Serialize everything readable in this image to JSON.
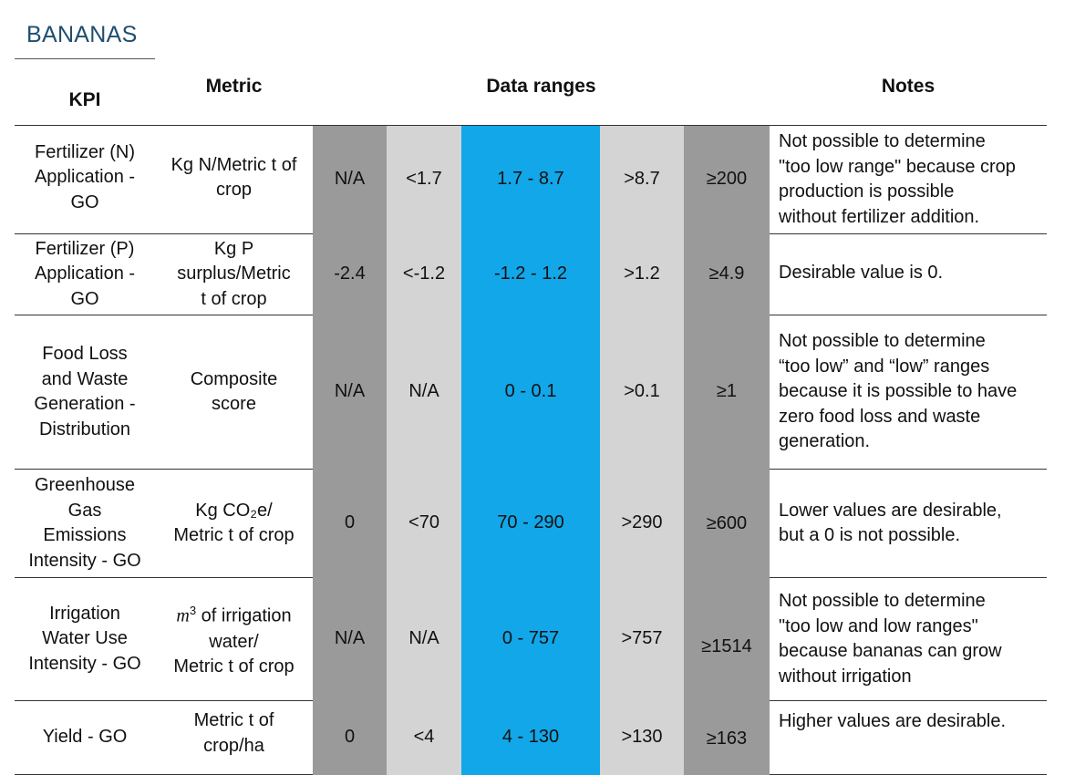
{
  "title": "BANANAS",
  "headers": {
    "kpi": "KPI",
    "metric": "Metric",
    "data_ranges": "Data ranges",
    "notes": "Notes"
  },
  "rows": [
    {
      "kpi": "Fertilizer (N)\nApplication -\nGO",
      "metric": "Kg N/Metric t of\ncrop",
      "ranges": [
        "N/A",
        "<1.7",
        "1.7 - 8.7",
        ">8.7",
        "≥200"
      ],
      "notes": "Not possible to determine\n\"too low range\" because crop\nproduction is possible\nwithout fertilizer addition."
    },
    {
      "kpi": "Fertilizer (P)\nApplication -\nGO",
      "metric": "Kg P\nsurplus/Metric\nt of crop",
      "ranges": [
        "-2.4",
        "<-1.2",
        "-1.2 - 1.2",
        ">1.2",
        "≥4.9"
      ],
      "notes": "Desirable value is 0."
    },
    {
      "kpi": "Food Loss\nand Waste\nGeneration -\nDistribution",
      "metric": "Composite\nscore",
      "ranges": [
        "N/A",
        "N/A",
        "0 - 0.1",
        ">0.1",
        "≥1"
      ],
      "notes": "Not possible to determine\n“too low” and “low” ranges\nbecause it is possible to have\nzero food loss and waste\ngeneration."
    },
    {
      "kpi": "Greenhouse\nGas\nEmissions\nIntensity - GO",
      "metric": "Kg CO₂e/\nMetric t of crop",
      "ranges": [
        "0",
        "<70",
        "70 - 290",
        ">290",
        "≥600"
      ],
      "notes": "Lower values are desirable,\nbut a 0 is not possible."
    },
    {
      "kpi": "Irrigation\nWater Use\nIntensity - GO",
      "metric_math": "m",
      "metric_sup": "3",
      "metric": " of irrigation\nwater/\nMetric t of crop",
      "ranges": [
        "N/A",
        "N/A",
        "0 - 757",
        ">757",
        "≥1514"
      ],
      "notes": "Not possible to determine\n\"too low and low ranges\"\nbecause bananas can grow\nwithout irrigation"
    },
    {
      "kpi": "Yield - GO",
      "metric": "Metric t of\ncrop/ha",
      "ranges": [
        "0",
        "<4",
        "4 - 130",
        ">130",
        "≥163"
      ],
      "notes": "Higher values are desirable."
    }
  ],
  "colors": {
    "outer_range": "#9a9a9a",
    "mid_range": "#d4d4d4",
    "target_range": "#12a7e8",
    "title": "#1f4e6e"
  }
}
